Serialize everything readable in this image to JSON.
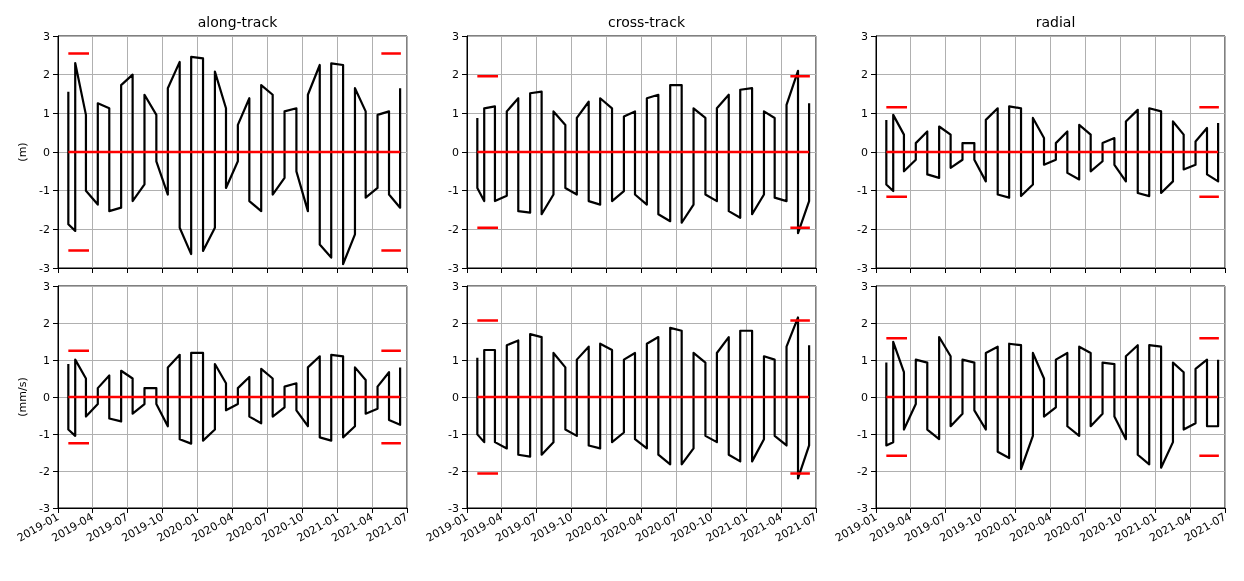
{
  "chart_data": [
    {
      "type": "line",
      "title": "along-track",
      "ylabel": "(m)",
      "xlim": [
        "2019-01",
        "2021-07"
      ],
      "xticks": [
        "2019-01",
        "2019-04",
        "2019-07",
        "2019-10",
        "2020-01",
        "2020-04",
        "2020-07",
        "2020-10",
        "2021-01",
        "2021-04",
        "2021-07"
      ],
      "ylim": [
        -3,
        3
      ],
      "yticks": [
        -3,
        -2,
        -1,
        0,
        1,
        2,
        3
      ],
      "grid": true,
      "tick_labels": "y",
      "series": [
        {
          "color": "#000000",
          "x": [
            "2019-01-28",
            "2019-01-28",
            "2019-02-15",
            "2019-02-15",
            "2019-03-15",
            "2019-03-15",
            "2019-04-15",
            "2019-04-15",
            "2019-05-15",
            "2019-05-15",
            "2019-06-15",
            "2019-06-15",
            "2019-07-15",
            "2019-07-15",
            "2019-08-15",
            "2019-08-15",
            "2019-09-15",
            "2019-09-15",
            "2019-10-15",
            "2019-10-15",
            "2019-11-15",
            "2019-11-15",
            "2019-12-15",
            "2019-12-15",
            "2020-01-15",
            "2020-01-15",
            "2020-02-15",
            "2020-02-15",
            "2020-03-15",
            "2020-03-15",
            "2020-04-15",
            "2020-04-15",
            "2020-05-15",
            "2020-05-15",
            "2020-06-15",
            "2020-06-15",
            "2020-07-15",
            "2020-07-15",
            "2020-08-15",
            "2020-08-15",
            "2020-09-15",
            "2020-09-15",
            "2020-10-15",
            "2020-10-15",
            "2020-11-15",
            "2020-11-15",
            "2020-12-15",
            "2020-12-15",
            "2021-01-15",
            "2021-01-15",
            "2021-02-15",
            "2021-02-15",
            "2021-03-15",
            "2021-03-15",
            "2021-04-15",
            "2021-04-15",
            "2021-05-15",
            "2021-05-15",
            "2021-06-13",
            "2021-06-13"
          ],
          "values": [
            1.56,
            -1.87,
            -2.04,
            2.3,
            0.96,
            -1.0,
            -1.36,
            1.26,
            1.13,
            -1.53,
            -1.44,
            1.73,
            2.0,
            -1.27,
            -0.84,
            1.48,
            0.96,
            -0.24,
            -1.1,
            1.65,
            2.33,
            -1.96,
            -2.64,
            2.46,
            2.42,
            -2.56,
            -1.96,
            2.08,
            1.13,
            -0.93,
            -0.24,
            0.7,
            1.39,
            -1.27,
            -1.53,
            1.73,
            1.48,
            -1.1,
            -0.67,
            1.05,
            1.13,
            -0.5,
            -1.53,
            1.48,
            2.25,
            -2.39,
            -2.73,
            2.29,
            2.25,
            -2.9,
            -2.13,
            1.65,
            1.05,
            -1.18,
            -0.93,
            0.96,
            1.05,
            -1.1,
            -1.44,
            1.65
          ]
        },
        {
          "color": "#ff0000",
          "x": [
            "2019-01-28",
            "2021-06-13"
          ],
          "values": [
            0,
            0
          ]
        },
        {
          "color": "#ff0000",
          "x": [
            "2019-01-28",
            "2019-03-23",
            "2020-04-01",
            "2021-04-25",
            "2021-06-15"
          ],
          "values": [
            2.55,
            2.55,
            null,
            2.55,
            2.55
          ]
        },
        {
          "color": "#ff0000",
          "x": [
            "2019-01-28",
            "2019-03-23",
            "2020-04-01",
            "2021-04-25",
            "2021-06-15"
          ],
          "values": [
            -2.55,
            -2.55,
            null,
            -2.55,
            -2.55
          ]
        }
      ]
    },
    {
      "type": "line",
      "title": "cross-track",
      "xlim": [
        "2019-01",
        "2021-07"
      ],
      "xticks": [
        "2019-01",
        "2019-04",
        "2019-07",
        "2019-10",
        "2020-01",
        "2020-04",
        "2020-07",
        "2020-10",
        "2021-01",
        "2021-04",
        "2021-07"
      ],
      "ylim": [
        -3,
        3
      ],
      "yticks": [
        -3,
        -2,
        -1,
        0,
        1,
        2,
        3
      ],
      "grid": true,
      "tick_labels": "y",
      "series": [
        {
          "color": "#000000",
          "x": [
            "2019-01-28",
            "2019-01-28",
            "2019-02-15",
            "2019-02-15",
            "2019-03-15",
            "2019-03-15",
            "2019-04-15",
            "2019-04-15",
            "2019-05-15",
            "2019-05-15",
            "2019-06-15",
            "2019-06-15",
            "2019-07-15",
            "2019-07-15",
            "2019-08-15",
            "2019-08-15",
            "2019-09-15",
            "2019-09-15",
            "2019-10-15",
            "2019-10-15",
            "2019-11-15",
            "2019-11-15",
            "2019-12-15",
            "2019-12-15",
            "2020-01-15",
            "2020-01-15",
            "2020-02-15",
            "2020-02-15",
            "2020-03-15",
            "2020-03-15",
            "2020-04-15",
            "2020-04-15",
            "2020-05-15",
            "2020-05-15",
            "2020-06-15",
            "2020-06-15",
            "2020-07-15",
            "2020-07-15",
            "2020-08-15",
            "2020-08-15",
            "2020-09-15",
            "2020-09-15",
            "2020-10-15",
            "2020-10-15",
            "2020-11-15",
            "2020-11-15",
            "2020-12-15",
            "2020-12-15",
            "2021-01-15",
            "2021-01-15",
            "2021-02-15",
            "2021-02-15",
            "2021-03-15",
            "2021-03-15",
            "2021-04-15",
            "2021-04-15",
            "2021-05-15",
            "2021-05-15",
            "2021-06-13",
            "2021-06-13"
          ],
          "values": [
            0.88,
            -0.93,
            -1.27,
            1.13,
            1.18,
            -1.27,
            -1.13,
            1.05,
            1.39,
            -1.53,
            -1.57,
            1.52,
            1.56,
            -1.61,
            -1.1,
            1.05,
            0.7,
            -0.93,
            -1.1,
            0.88,
            1.3,
            -1.27,
            -1.36,
            1.39,
            1.13,
            -1.27,
            -1.01,
            0.92,
            1.05,
            -1.1,
            -1.36,
            1.39,
            1.48,
            -1.61,
            -1.79,
            1.73,
            1.73,
            -1.83,
            -1.36,
            1.13,
            0.88,
            -1.1,
            -1.27,
            1.13,
            1.48,
            -1.53,
            -1.7,
            1.61,
            1.65,
            -1.61,
            -1.1,
            1.05,
            0.88,
            -1.18,
            -1.27,
            1.22,
            2.1,
            -2.1,
            -1.27,
            1.26
          ]
        },
        {
          "color": "#ff0000",
          "x": [
            "2019-01-28",
            "2021-06-13"
          ],
          "values": [
            0,
            0
          ]
        },
        {
          "color": "#ff0000",
          "x": [
            "2019-01-28",
            "2019-03-23",
            "2020-04-01",
            "2021-04-25",
            "2021-06-15"
          ],
          "values": [
            1.96,
            1.96,
            null,
            1.96,
            1.96
          ]
        },
        {
          "color": "#ff0000",
          "x": [
            "2019-01-28",
            "2019-03-23",
            "2020-04-01",
            "2021-04-25",
            "2021-06-15"
          ],
          "values": [
            -1.96,
            -1.96,
            null,
            -1.96,
            -1.96
          ]
        }
      ]
    },
    {
      "type": "line",
      "title": "radial",
      "xlim": [
        "2019-01",
        "2021-07"
      ],
      "xticks": [
        "2019-01",
        "2019-04",
        "2019-07",
        "2019-10",
        "2020-01",
        "2020-04",
        "2020-07",
        "2020-10",
        "2021-01",
        "2021-04",
        "2021-07"
      ],
      "ylim": [
        -3,
        3
      ],
      "yticks": [
        -3,
        -2,
        -1,
        0,
        1,
        2,
        3
      ],
      "grid": true,
      "tick_labels": "y",
      "series": [
        {
          "color": "#000000",
          "x": [
            "2019-01-28",
            "2019-01-28",
            "2019-02-15",
            "2019-02-15",
            "2019-03-15",
            "2019-03-15",
            "2019-04-15",
            "2019-04-15",
            "2019-05-15",
            "2019-05-15",
            "2019-06-15",
            "2019-06-15",
            "2019-07-15",
            "2019-07-15",
            "2019-08-15",
            "2019-08-15",
            "2019-09-15",
            "2019-09-15",
            "2019-10-15",
            "2019-10-15",
            "2019-11-15",
            "2019-11-15",
            "2019-12-15",
            "2019-12-15",
            "2020-01-15",
            "2020-01-15",
            "2020-02-15",
            "2020-02-15",
            "2020-03-15",
            "2020-03-15",
            "2020-04-15",
            "2020-04-15",
            "2020-05-15",
            "2020-05-15",
            "2020-06-15",
            "2020-06-15",
            "2020-07-15",
            "2020-07-15",
            "2020-08-15",
            "2020-08-15",
            "2020-09-15",
            "2020-09-15",
            "2020-10-15",
            "2020-10-15",
            "2020-11-15",
            "2020-11-15",
            "2020-12-15",
            "2020-12-15",
            "2021-01-15",
            "2021-01-15",
            "2021-02-15",
            "2021-02-15",
            "2021-03-15",
            "2021-03-15",
            "2021-04-15",
            "2021-04-15",
            "2021-05-15",
            "2021-05-15",
            "2021-06-13",
            "2021-06-13"
          ],
          "values": [
            0.83,
            -0.84,
            -1.01,
            0.96,
            0.45,
            -0.5,
            -0.2,
            0.23,
            0.53,
            -0.58,
            -0.67,
            0.66,
            0.45,
            -0.41,
            -0.2,
            0.23,
            0.23,
            -0.2,
            -0.76,
            0.83,
            1.13,
            -1.1,
            -1.18,
            1.18,
            1.13,
            -1.14,
            -0.84,
            0.88,
            0.36,
            -0.33,
            -0.2,
            0.23,
            0.53,
            -0.54,
            -0.71,
            0.7,
            0.45,
            -0.5,
            -0.24,
            0.23,
            0.36,
            -0.33,
            -0.76,
            0.79,
            1.09,
            -1.06,
            -1.14,
            1.13,
            1.05,
            -1.06,
            -0.76,
            0.79,
            0.45,
            -0.45,
            -0.33,
            0.27,
            0.62,
            -0.58,
            -0.76,
            0.75
          ]
        },
        {
          "color": "#ff0000",
          "x": [
            "2019-01-28",
            "2021-06-13"
          ],
          "values": [
            0,
            0
          ]
        },
        {
          "color": "#ff0000",
          "x": [
            "2019-01-28",
            "2019-03-23",
            "2020-04-01",
            "2021-04-25",
            "2021-06-15"
          ],
          "values": [
            1.16,
            1.16,
            null,
            1.16,
            1.16
          ]
        },
        {
          "color": "#ff0000",
          "x": [
            "2019-01-28",
            "2019-03-23",
            "2020-04-01",
            "2021-04-25",
            "2021-06-15"
          ],
          "values": [
            -1.16,
            -1.16,
            null,
            -1.16,
            -1.16
          ]
        }
      ]
    },
    {
      "type": "line",
      "ylabel": "(mm/s)",
      "xlim": [
        "2019-01",
        "2021-07"
      ],
      "xticks": [
        "2019-01",
        "2019-04",
        "2019-07",
        "2019-10",
        "2020-01",
        "2020-04",
        "2020-07",
        "2020-10",
        "2021-01",
        "2021-04",
        "2021-07"
      ],
      "ylim": [
        -3,
        3
      ],
      "yticks": [
        -3,
        -2,
        -1,
        0,
        1,
        2,
        3
      ],
      "grid": true,
      "series": [
        {
          "color": "#000000",
          "x": [
            "2019-01-28",
            "2019-01-28",
            "2019-02-15",
            "2019-02-15",
            "2019-03-15",
            "2019-03-15",
            "2019-04-15",
            "2019-04-15",
            "2019-05-15",
            "2019-05-15",
            "2019-06-15",
            "2019-06-15",
            "2019-07-15",
            "2019-07-15",
            "2019-08-15",
            "2019-08-15",
            "2019-09-15",
            "2019-09-15",
            "2019-10-15",
            "2019-10-15",
            "2019-11-15",
            "2019-11-15",
            "2019-12-15",
            "2019-12-15",
            "2020-01-15",
            "2020-01-15",
            "2020-02-15",
            "2020-02-15",
            "2020-03-15",
            "2020-03-15",
            "2020-04-15",
            "2020-04-15",
            "2020-05-15",
            "2020-05-15",
            "2020-06-15",
            "2020-06-15",
            "2020-07-15",
            "2020-07-15",
            "2020-08-15",
            "2020-08-15",
            "2020-09-15",
            "2020-09-15",
            "2020-10-15",
            "2020-10-15",
            "2020-11-15",
            "2020-11-15",
            "2020-12-15",
            "2020-12-15",
            "2021-01-15",
            "2021-01-15",
            "2021-02-15",
            "2021-02-15",
            "2021-03-15",
            "2021-03-15",
            "2021-04-15",
            "2021-04-15",
            "2021-05-15",
            "2021-05-15",
            "2021-06-13",
            "2021-06-13"
          ],
          "values": [
            0.89,
            -0.88,
            -1.05,
            1.01,
            0.5,
            -0.53,
            -0.19,
            0.24,
            0.58,
            -0.58,
            -0.66,
            0.71,
            0.5,
            -0.45,
            -0.19,
            0.24,
            0.24,
            -0.19,
            -0.79,
            0.8,
            1.14,
            -1.14,
            -1.26,
            1.19,
            1.19,
            -1.18,
            -0.88,
            0.89,
            0.37,
            -0.36,
            -0.19,
            0.24,
            0.54,
            -0.53,
            -0.71,
            0.76,
            0.5,
            -0.53,
            -0.28,
            0.28,
            0.37,
            -0.36,
            -0.79,
            0.8,
            1.1,
            -1.09,
            -1.18,
            1.14,
            1.1,
            -1.09,
            -0.79,
            0.8,
            0.46,
            -0.45,
            -0.32,
            0.28,
            0.67,
            -0.62,
            -0.75,
            0.8
          ]
        },
        {
          "color": "#ff0000",
          "x": [
            "2019-01-28",
            "2021-06-13"
          ],
          "values": [
            0,
            0
          ]
        },
        {
          "color": "#ff0000",
          "x": [
            "2019-01-28",
            "2019-03-23",
            "2020-04-01",
            "2021-04-25",
            "2021-06-15"
          ],
          "values": [
            1.25,
            1.25,
            null,
            1.25,
            1.25
          ]
        },
        {
          "color": "#ff0000",
          "x": [
            "2019-01-28",
            "2019-03-23",
            "2020-04-01",
            "2021-04-25",
            "2021-06-15"
          ],
          "values": [
            -1.25,
            -1.25,
            null,
            -1.25,
            -1.25
          ]
        }
      ]
    },
    {
      "type": "line",
      "xlim": [
        "2019-01",
        "2021-07"
      ],
      "xticks": [
        "2019-01",
        "2019-04",
        "2019-07",
        "2019-10",
        "2020-01",
        "2020-04",
        "2020-07",
        "2020-10",
        "2021-01",
        "2021-04",
        "2021-07"
      ],
      "ylim": [
        -3,
        3
      ],
      "yticks": [
        -3,
        -2,
        -1,
        0,
        1,
        2,
        3
      ],
      "grid": true,
      "series": [
        {
          "color": "#000000",
          "x": [
            "2019-01-28",
            "2019-01-28",
            "2019-02-15",
            "2019-02-15",
            "2019-03-15",
            "2019-03-15",
            "2019-04-15",
            "2019-04-15",
            "2019-05-15",
            "2019-05-15",
            "2019-06-15",
            "2019-06-15",
            "2019-07-15",
            "2019-07-15",
            "2019-08-15",
            "2019-08-15",
            "2019-09-15",
            "2019-09-15",
            "2019-10-15",
            "2019-10-15",
            "2019-11-15",
            "2019-11-15",
            "2019-12-15",
            "2019-12-15",
            "2020-01-15",
            "2020-01-15",
            "2020-02-15",
            "2020-02-15",
            "2020-03-15",
            "2020-03-15",
            "2020-04-15",
            "2020-04-15",
            "2020-05-15",
            "2020-05-15",
            "2020-06-15",
            "2020-06-15",
            "2020-07-15",
            "2020-07-15",
            "2020-08-15",
            "2020-08-15",
            "2020-09-15",
            "2020-09-15",
            "2020-10-15",
            "2020-10-15",
            "2020-11-15",
            "2020-11-15",
            "2020-12-15",
            "2020-12-15",
            "2021-01-15",
            "2021-01-15",
            "2021-02-15",
            "2021-02-15",
            "2021-03-15",
            "2021-03-15",
            "2021-04-15",
            "2021-04-15",
            "2021-05-15",
            "2021-05-15",
            "2021-06-13",
            "2021-06-13"
          ],
          "values": [
            1.06,
            -1.01,
            -1.22,
            1.27,
            1.27,
            -1.22,
            -1.39,
            1.4,
            1.53,
            -1.56,
            -1.61,
            1.7,
            1.62,
            -1.56,
            -1.22,
            1.19,
            0.8,
            -0.88,
            -1.05,
            1.01,
            1.36,
            -1.31,
            -1.39,
            1.44,
            1.27,
            -1.22,
            -0.96,
            1.01,
            1.19,
            -1.14,
            -1.39,
            1.44,
            1.62,
            -1.56,
            -1.82,
            1.87,
            1.79,
            -1.82,
            -1.39,
            1.19,
            0.93,
            -1.05,
            -1.22,
            1.19,
            1.62,
            -1.56,
            -1.74,
            1.79,
            1.79,
            -1.74,
            -1.14,
            1.1,
            1.01,
            -1.05,
            -1.31,
            1.36,
            2.15,
            -2.2,
            -1.31,
            1.4
          ]
        },
        {
          "color": "#ff0000",
          "x": [
            "2019-01-28",
            "2021-06-13"
          ],
          "values": [
            0,
            0
          ]
        },
        {
          "color": "#ff0000",
          "x": [
            "2019-01-28",
            "2019-03-23",
            "2020-04-01",
            "2021-04-25",
            "2021-06-15"
          ],
          "values": [
            2.07,
            2.07,
            null,
            2.07,
            2.07
          ]
        },
        {
          "color": "#ff0000",
          "x": [
            "2019-01-28",
            "2019-03-23",
            "2020-04-01",
            "2021-04-25",
            "2021-06-15"
          ],
          "values": [
            -2.07,
            -2.07,
            null,
            -2.07,
            -2.07
          ]
        }
      ]
    },
    {
      "type": "line",
      "xlim": [
        "2019-01",
        "2021-07"
      ],
      "xticks": [
        "2019-01",
        "2019-04",
        "2019-07",
        "2019-10",
        "2020-01",
        "2020-04",
        "2020-07",
        "2020-10",
        "2021-01",
        "2021-04",
        "2021-07"
      ],
      "ylim": [
        -3,
        3
      ],
      "yticks": [
        -3,
        -2,
        -1,
        0,
        1,
        2,
        3
      ],
      "grid": true,
      "series": [
        {
          "color": "#000000",
          "x": [
            "2019-01-28",
            "2019-01-28",
            "2019-02-15",
            "2019-02-15",
            "2019-03-15",
            "2019-03-15",
            "2019-04-15",
            "2019-04-15",
            "2019-05-15",
            "2019-05-15",
            "2019-06-15",
            "2019-06-15",
            "2019-07-15",
            "2019-07-15",
            "2019-08-15",
            "2019-08-15",
            "2019-09-15",
            "2019-09-15",
            "2019-10-15",
            "2019-10-15",
            "2019-11-15",
            "2019-11-15",
            "2019-12-15",
            "2019-12-15",
            "2020-01-15",
            "2020-01-15",
            "2020-02-15",
            "2020-02-15",
            "2020-03-15",
            "2020-03-15",
            "2020-04-15",
            "2020-04-15",
            "2020-05-15",
            "2020-05-15",
            "2020-06-15",
            "2020-06-15",
            "2020-07-15",
            "2020-07-15",
            "2020-08-15",
            "2020-08-15",
            "2020-09-15",
            "2020-09-15",
            "2020-10-15",
            "2020-10-15",
            "2020-11-15",
            "2020-11-15",
            "2020-12-15",
            "2020-12-15",
            "2021-01-15",
            "2021-01-15",
            "2021-02-15",
            "2021-02-15",
            "2021-03-15",
            "2021-03-15",
            "2021-04-15",
            "2021-04-15",
            "2021-05-15",
            "2021-05-15",
            "2021-06-13",
            "2021-06-13"
          ],
          "values": [
            0.93,
            -1.31,
            -1.22,
            1.49,
            0.67,
            -0.88,
            -0.19,
            1.01,
            0.93,
            -0.88,
            -1.14,
            1.62,
            1.1,
            -0.79,
            -0.45,
            1.01,
            0.93,
            -0.36,
            -0.88,
            1.19,
            1.36,
            -1.48,
            -1.65,
            1.44,
            1.4,
            -1.95,
            -1.05,
            1.19,
            0.5,
            -0.53,
            -0.28,
            1.01,
            1.19,
            -0.79,
            -1.05,
            1.36,
            1.19,
            -0.79,
            -0.45,
            0.93,
            0.89,
            -0.53,
            -1.14,
            1.1,
            1.4,
            -1.56,
            -1.82,
            1.4,
            1.36,
            -1.91,
            -1.22,
            0.93,
            0.67,
            -0.88,
            -0.71,
            0.76,
            1.01,
            -0.79,
            -0.79,
            1.01
          ]
        },
        {
          "color": "#ff0000",
          "x": [
            "2019-01-28",
            "2021-06-13"
          ],
          "values": [
            0,
            0
          ]
        },
        {
          "color": "#ff0000",
          "x": [
            "2019-01-28",
            "2019-03-23",
            "2020-04-01",
            "2021-04-25",
            "2021-06-15"
          ],
          "values": [
            1.59,
            1.59,
            null,
            1.59,
            1.59
          ]
        },
        {
          "color": "#ff0000",
          "x": [
            "2019-01-28",
            "2019-03-23",
            "2020-04-01",
            "2021-04-25",
            "2021-06-15"
          ],
          "values": [
            -1.59,
            -1.59,
            null,
            -1.59,
            -1.59
          ]
        }
      ]
    }
  ]
}
